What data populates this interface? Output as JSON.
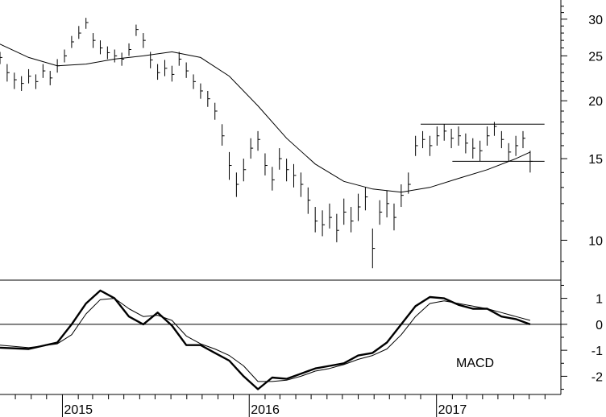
{
  "chart_data": [
    {
      "type": "ohlc",
      "scale": "log",
      "ylim": [
        8.2,
        33
      ],
      "y_ticks": [
        10,
        15,
        20,
        25,
        30
      ],
      "y_tick_labels": [
        "10",
        "15",
        "20",
        "25",
        "30"
      ],
      "xlim": [
        "2014-09-01",
        "2017-09-01"
      ],
      "x_ticks": [
        "2015-01-01",
        "2016-01-01",
        "2017-01-01"
      ],
      "x_tick_labels": [
        "2015",
        "2016",
        "2017"
      ],
      "grid": false,
      "price_series": {
        "x": [
          "2014-09-01",
          "2014-09-15",
          "2014-09-29",
          "2014-10-13",
          "2014-10-27",
          "2014-11-10",
          "2014-11-24",
          "2014-12-08",
          "2014-12-22",
          "2015-01-05",
          "2015-01-19",
          "2015-02-02",
          "2015-02-16",
          "2015-03-02",
          "2015-03-16",
          "2015-03-30",
          "2015-04-13",
          "2015-04-27",
          "2015-05-11",
          "2015-05-25",
          "2015-06-08",
          "2015-06-22",
          "2015-07-06",
          "2015-07-20",
          "2015-08-03",
          "2015-08-17",
          "2015-08-31",
          "2015-09-14",
          "2015-09-28",
          "2015-10-12",
          "2015-10-26",
          "2015-11-09",
          "2015-11-23",
          "2015-12-07",
          "2015-12-21",
          "2016-01-04",
          "2016-01-18",
          "2016-02-01",
          "2016-02-15",
          "2016-02-29",
          "2016-03-14",
          "2016-03-28",
          "2016-04-11",
          "2016-04-25",
          "2016-05-09",
          "2016-05-23",
          "2016-06-06",
          "2016-06-20",
          "2016-07-04",
          "2016-07-18",
          "2016-08-01",
          "2016-08-15",
          "2016-08-29",
          "2016-09-12",
          "2016-09-26",
          "2016-10-10",
          "2016-10-24",
          "2016-11-07",
          "2016-11-21",
          "2016-12-05",
          "2016-12-19",
          "2017-01-02",
          "2017-01-16",
          "2017-01-30",
          "2017-02-13",
          "2017-02-27",
          "2017-03-13",
          "2017-03-27",
          "2017-04-10",
          "2017-04-24",
          "2017-05-08",
          "2017-05-22",
          "2017-06-05",
          "2017-06-19",
          "2017-07-03"
        ],
        "close": [
          24.8,
          23.0,
          22.2,
          21.8,
          22.6,
          22.0,
          23.2,
          22.4,
          23.8,
          25.0,
          26.8,
          28.0,
          29.5,
          27.0,
          26.0,
          25.4,
          25.0,
          24.6,
          25.8,
          28.5,
          27.0,
          24.5,
          23.0,
          23.5,
          22.8,
          24.6,
          23.2,
          22.0,
          21.0,
          20.2,
          19.0,
          16.8,
          14.5,
          13.2,
          14.2,
          15.8,
          16.5,
          14.5,
          13.5,
          15.0,
          14.2,
          13.8,
          13.2,
          12.2,
          11.0,
          10.8,
          11.2,
          10.5,
          11.5,
          11.0,
          11.8,
          12.4,
          9.6,
          11.5,
          12.0,
          11.2,
          12.5,
          13.2,
          16.0,
          16.5,
          16.0,
          16.8,
          17.2,
          16.6,
          16.8,
          16.2,
          15.8,
          15.6,
          16.8,
          17.6,
          16.5,
          15.5,
          16.0,
          16.6,
          14.8
        ],
        "high": [
          25.5,
          24.0,
          23.0,
          22.6,
          23.4,
          22.8,
          24.0,
          23.2,
          24.6,
          25.8,
          27.6,
          29.0,
          30.2,
          28.0,
          27.0,
          26.2,
          25.8,
          25.4,
          26.6,
          29.2,
          28.0,
          25.5,
          24.0,
          24.5,
          23.8,
          25.5,
          24.2,
          22.8,
          21.8,
          21.0,
          19.8,
          17.8,
          15.5,
          14.0,
          15.0,
          16.6,
          17.2,
          15.4,
          14.4,
          15.8,
          15.0,
          14.6,
          14.0,
          13.0,
          11.8,
          11.6,
          12.0,
          11.4,
          12.3,
          11.8,
          12.6,
          13.0,
          10.6,
          12.2,
          12.8,
          12.0,
          13.2,
          14.0,
          16.8,
          17.2,
          16.8,
          17.6,
          17.8,
          17.4,
          17.6,
          17.0,
          16.6,
          16.4,
          17.6,
          18.0,
          17.2,
          16.2,
          16.8,
          17.2,
          15.6
        ],
        "low": [
          24.0,
          22.0,
          21.2,
          21.0,
          21.8,
          21.2,
          22.4,
          21.6,
          23.0,
          24.2,
          26.0,
          27.2,
          28.6,
          26.0,
          25.2,
          24.6,
          24.2,
          23.8,
          25.0,
          27.6,
          26.0,
          23.5,
          22.2,
          22.6,
          22.0,
          23.8,
          22.4,
          21.2,
          20.2,
          19.4,
          18.2,
          16.0,
          13.5,
          12.4,
          13.4,
          15.0,
          15.6,
          13.8,
          12.8,
          14.2,
          13.4,
          13.0,
          12.4,
          11.4,
          10.4,
          10.2,
          10.6,
          9.9,
          10.8,
          10.4,
          11.0,
          11.6,
          8.7,
          10.8,
          11.2,
          10.5,
          11.8,
          12.6,
          15.2,
          15.8,
          15.2,
          16.0,
          16.4,
          15.8,
          16.0,
          15.4,
          15.0,
          14.8,
          16.0,
          16.8,
          15.8,
          14.8,
          15.2,
          15.8,
          14.0
        ]
      },
      "moving_average": {
        "x": [
          "2014-09-01",
          "2014-10-27",
          "2014-12-22",
          "2015-02-16",
          "2015-04-13",
          "2015-06-08",
          "2015-08-03",
          "2015-09-28",
          "2015-11-23",
          "2016-01-18",
          "2016-03-14",
          "2016-05-09",
          "2016-07-04",
          "2016-08-29",
          "2016-10-24",
          "2016-12-19",
          "2017-02-13",
          "2017-04-10",
          "2017-06-05",
          "2017-07-03"
        ],
        "y": [
          26.5,
          24.8,
          23.8,
          24.0,
          24.6,
          25.0,
          25.5,
          24.8,
          22.6,
          19.5,
          16.6,
          14.6,
          13.4,
          12.9,
          12.7,
          13.0,
          13.6,
          14.2,
          15.0,
          15.5
        ]
      },
      "trendlines": [
        {
          "x": [
            "2016-12-01",
            "2017-07-31"
          ],
          "y": [
            17.8,
            17.8
          ]
        },
        {
          "x": [
            "2017-02-01",
            "2017-07-31"
          ],
          "y": [
            14.8,
            14.8
          ]
        }
      ]
    },
    {
      "type": "line",
      "annotation": "MACD",
      "ylim": [
        -2.7,
        1.7
      ],
      "y_ticks": [
        1,
        0,
        -1,
        -2
      ],
      "y_tick_labels": [
        "1",
        "0",
        "-1",
        "-2"
      ],
      "series": [
        {
          "x": [
            "2014-09-01",
            "2014-10-27",
            "2014-12-22",
            "2015-01-19",
            "2015-02-16",
            "2015-03-16",
            "2015-04-13",
            "2015-05-11",
            "2015-06-08",
            "2015-07-06",
            "2015-08-03",
            "2015-08-31",
            "2015-09-28",
            "2015-10-26",
            "2015-11-23",
            "2015-12-21",
            "2016-01-18",
            "2016-02-15",
            "2016-03-14",
            "2016-04-11",
            "2016-05-09",
            "2016-06-06",
            "2016-07-04",
            "2016-08-01",
            "2016-08-29",
            "2016-09-26",
            "2016-10-24",
            "2016-11-21",
            "2016-12-19",
            "2017-01-16",
            "2017-02-13",
            "2017-03-13",
            "2017-04-10",
            "2017-05-08",
            "2017-06-05",
            "2017-07-03"
          ],
          "y": [
            -0.9,
            -0.95,
            -0.7,
            0.0,
            0.8,
            1.3,
            1.0,
            0.3,
            0.0,
            0.45,
            -0.05,
            -0.8,
            -0.8,
            -1.1,
            -1.4,
            -2.0,
            -2.5,
            -2.05,
            -2.1,
            -1.9,
            -1.7,
            -1.6,
            -1.5,
            -1.2,
            -1.1,
            -0.7,
            0.0,
            0.7,
            1.05,
            1.0,
            0.75,
            0.6,
            0.6,
            0.3,
            0.2,
            0.0
          ]
        },
        {
          "x": [
            "2014-09-01",
            "2014-10-27",
            "2014-12-22",
            "2015-01-19",
            "2015-02-16",
            "2015-03-16",
            "2015-04-13",
            "2015-05-11",
            "2015-06-08",
            "2015-07-06",
            "2015-08-03",
            "2015-08-31",
            "2015-09-28",
            "2015-10-26",
            "2015-11-23",
            "2015-12-21",
            "2016-01-18",
            "2016-02-15",
            "2016-03-14",
            "2016-04-11",
            "2016-05-09",
            "2016-06-06",
            "2016-07-04",
            "2016-08-01",
            "2016-08-29",
            "2016-09-26",
            "2016-10-24",
            "2016-11-21",
            "2016-12-19",
            "2017-01-16",
            "2017-02-13",
            "2017-03-13",
            "2017-04-10",
            "2017-05-08",
            "2017-06-05",
            "2017-07-03"
          ],
          "y": [
            -0.8,
            -0.9,
            -0.75,
            -0.4,
            0.4,
            0.95,
            1.0,
            0.6,
            0.3,
            0.35,
            0.15,
            -0.45,
            -0.75,
            -0.95,
            -1.2,
            -1.6,
            -2.2,
            -2.2,
            -2.15,
            -2.0,
            -1.8,
            -1.7,
            -1.55,
            -1.35,
            -1.2,
            -0.95,
            -0.4,
            0.3,
            0.8,
            0.9,
            0.8,
            0.7,
            0.6,
            0.45,
            0.3,
            0.15
          ]
        }
      ],
      "reference_line": 0
    }
  ]
}
